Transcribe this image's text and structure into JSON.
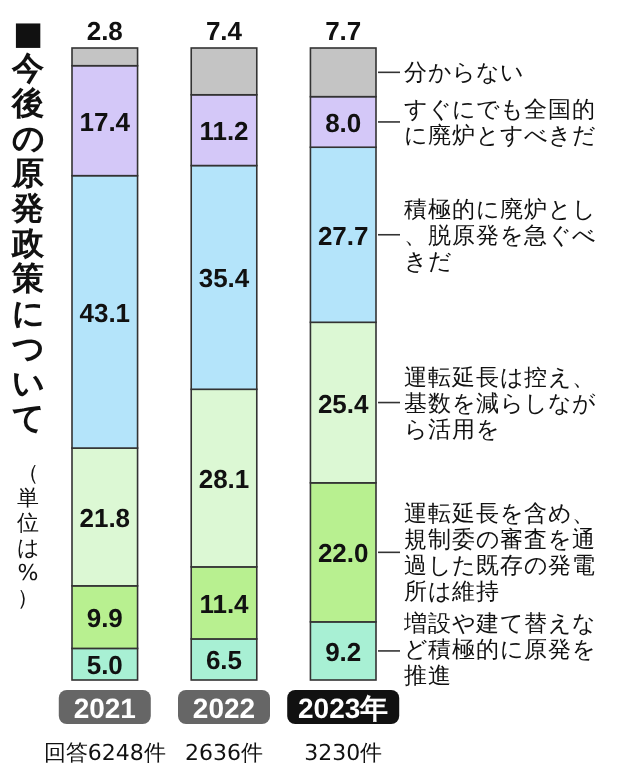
{
  "chart_data": {
    "type": "bar",
    "stacked": true,
    "title": "■今後の原発政策について",
    "subtitle": "（単位は%）",
    "categories": [
      "2021",
      "2022",
      "2023年"
    ],
    "series": [
      {
        "name": "増設や建て替えなど積極的に原発を推進",
        "color": "#a8f0d4",
        "values": [
          5.0,
          6.5,
          9.2
        ],
        "value_labels": [
          "5.0",
          "6.5",
          "9.2"
        ]
      },
      {
        "name": "運転延長を含め、規制委の審査を通過した既存の発電所は維持",
        "color": "#b8f090",
        "values": [
          9.9,
          11.4,
          22.0
        ],
        "value_labels": [
          "9.9",
          "11.4",
          "22.0"
        ]
      },
      {
        "name": "運転延長は控え、基数を減らしながら活用を",
        "color": "#dcf8d4",
        "values": [
          21.8,
          28.1,
          25.4
        ],
        "value_labels": [
          "21.8",
          "28.1",
          "25.4"
        ]
      },
      {
        "name": "積極的に廃炉とし、脱原発を急ぐべきだ",
        "color": "#b4e4fa",
        "values": [
          43.1,
          35.4,
          27.7
        ],
        "value_labels": [
          "43.1",
          "35.4",
          "27.7"
        ]
      },
      {
        "name": "すぐにでも全国的に廃炉とすべきだ",
        "color": "#d4c8f8",
        "values": [
          17.4,
          11.2,
          8.0
        ],
        "value_labels": [
          "17.4",
          "11.2",
          "8.0"
        ]
      },
      {
        "name": "分からない",
        "color": "#c4c4c4",
        "values": [
          2.8,
          7.4,
          7.7
        ],
        "value_labels": [
          "2.8",
          "7.4",
          "7.7"
        ]
      }
    ],
    "legend": "right",
    "annotations": [
      "回答6248件",
      "2636件",
      "3230件"
    ]
  }
}
